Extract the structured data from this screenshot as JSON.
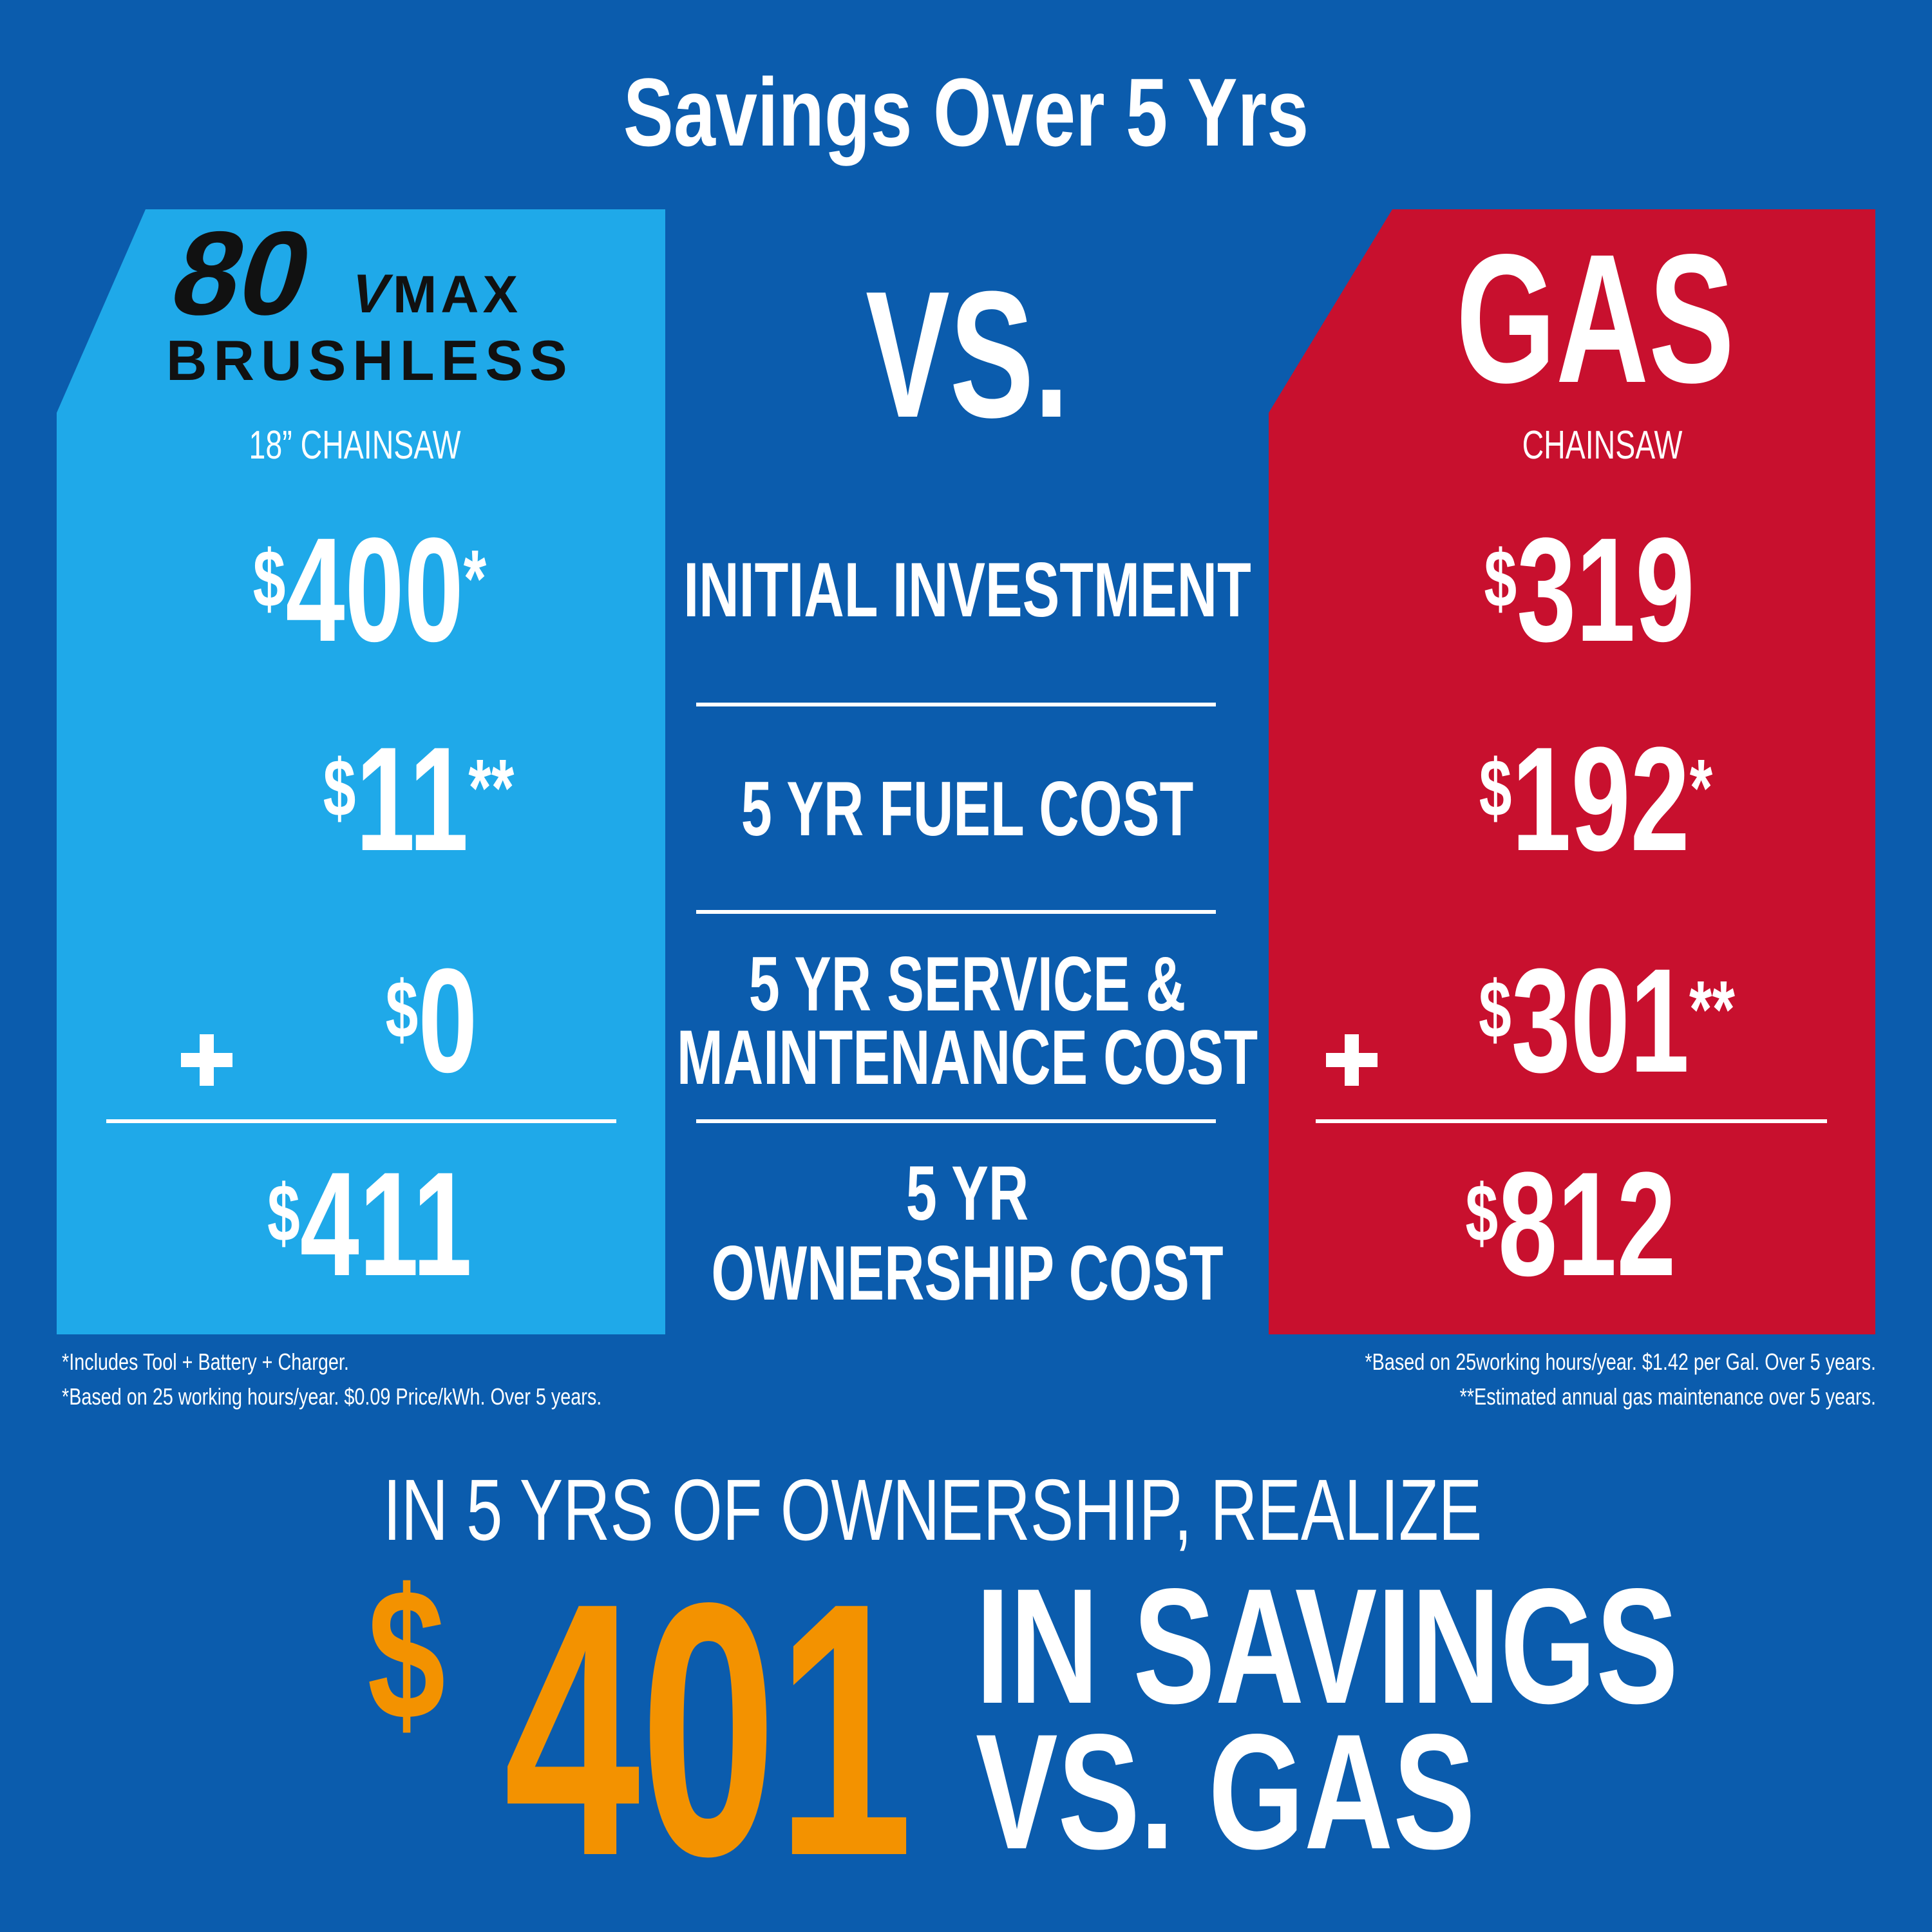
{
  "title": "Savings Over 5 Yrs",
  "electric": {
    "brand": {
      "number": "80",
      "unit": "V",
      "series": "MAX",
      "tech": "BRUSHLESS"
    },
    "product": "18” CHAINSAW",
    "costs": [
      {
        "currency": "$",
        "amount": 400,
        "note": "*"
      },
      {
        "currency": "$",
        "amount": 11,
        "note": "**"
      },
      {
        "currency": "$",
        "amount": 0
      }
    ],
    "total": {
      "currency": "$",
      "amount": 411
    },
    "footnotes": [
      "*Includes Tool + Battery + Charger.",
      "*Based on 25 working hours/year. $0.09 Price/kWh. Over 5 years."
    ]
  },
  "versus": "VS.",
  "rows": [
    {
      "lines": [
        "INITIAL INVESTMENT"
      ]
    },
    {
      "lines": [
        "5 YR FUEL COST"
      ]
    },
    {
      "lines": [
        "5 YR SERVICE &",
        "MAINTENANCE COST"
      ]
    },
    {
      "lines": [
        "5 YR",
        "OWNERSHIP COST"
      ]
    }
  ],
  "gas": {
    "label": "GAS",
    "product": "CHAINSAW",
    "costs": [
      {
        "currency": "$",
        "amount": 319
      },
      {
        "currency": "$",
        "amount": 192,
        "note": "*"
      },
      {
        "currency": "$",
        "amount": 301,
        "note": "**"
      }
    ],
    "total": {
      "currency": "$",
      "amount": 812
    },
    "footnotes": [
      "*Based on 25working hours/year. $1.42 per Gal. Over 5 years.",
      "**Estimated annual gas maintenance over 5 years."
    ]
  },
  "summary": {
    "lead": "IN 5 YRS OF OWNERSHIP, REALIZE",
    "currency": "$",
    "amount": 401,
    "lines": [
      "IN SAVINGS",
      "VS. GAS"
    ]
  }
}
